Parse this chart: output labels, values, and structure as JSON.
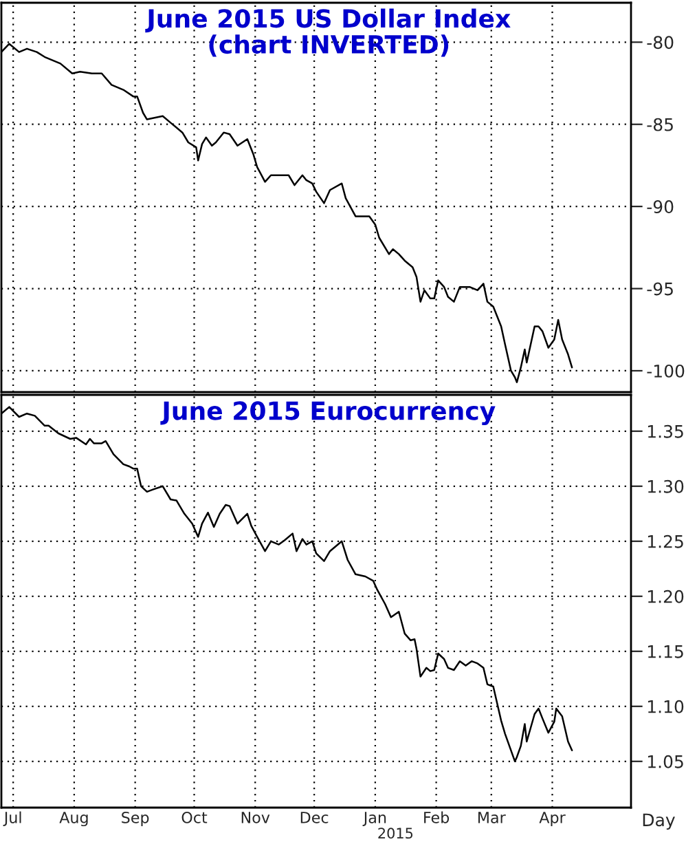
{
  "chart_data": [
    {
      "type": "line",
      "title": "June 2015 US Dollar Index\n(chart INVERTED)",
      "grid": true,
      "tick_labels": "y",
      "xlim": [
        "2014-06-25",
        "2015-05-11"
      ],
      "xticks": [
        {
          "value": "2014-07-01",
          "label": null
        },
        {
          "value": "2014-08-01",
          "label": null
        },
        {
          "value": "2014-09-01",
          "label": null
        },
        {
          "value": "2014-10-01",
          "label": null
        },
        {
          "value": "2014-11-01",
          "label": null
        },
        {
          "value": "2014-12-01",
          "label": null
        },
        {
          "value": "2015-01-01",
          "label": null
        },
        {
          "value": "2015-02-01",
          "label": null
        },
        {
          "value": "2015-03-01",
          "label": null
        },
        {
          "value": "2015-04-01",
          "label": null
        }
      ],
      "ylim": [
        -101.3,
        -77.6
      ],
      "yticks": [
        {
          "value": -100,
          "label": "-100"
        },
        {
          "value": -95,
          "label": "-95"
        },
        {
          "value": -90,
          "label": "-90"
        },
        {
          "value": -85,
          "label": "-85"
        },
        {
          "value": -80,
          "label": "-80"
        }
      ],
      "series": [
        {
          "color": "#000000",
          "x": [
            "2014-06-25",
            "2014-06-29",
            "2014-07-04",
            "2014-07-08",
            "2014-07-13",
            "2014-07-17",
            "2014-07-25",
            "2014-07-31",
            "2014-08-04",
            "2014-08-10",
            "2014-08-15",
            "2014-08-20",
            "2014-08-26",
            "2014-08-31",
            "2014-09-02",
            "2014-09-05",
            "2014-09-07",
            "2014-09-15",
            "2014-09-19",
            "2014-09-25",
            "2014-09-28",
            "2014-10-02",
            "2014-10-03",
            "2014-10-05",
            "2014-10-07",
            "2014-10-10",
            "2014-10-12",
            "2014-10-16",
            "2014-10-19",
            "2014-10-23",
            "2014-10-28",
            "2014-10-31",
            "2014-11-02",
            "2014-11-06",
            "2014-11-09",
            "2014-11-14",
            "2014-11-18",
            "2014-11-21",
            "2014-11-25",
            "2014-11-27",
            "2014-11-30",
            "2014-12-02",
            "2014-12-06",
            "2014-12-09",
            "2014-12-15",
            "2014-12-17",
            "2014-12-22",
            "2014-12-26",
            "2014-12-29",
            "2015-01-01",
            "2015-01-03",
            "2015-01-08",
            "2015-01-10",
            "2015-01-13",
            "2015-01-16",
            "2015-01-20",
            "2015-01-22",
            "2015-01-24",
            "2015-01-26",
            "2015-01-29",
            "2015-01-31",
            "2015-02-02",
            "2015-02-05",
            "2015-02-07",
            "2015-02-10",
            "2015-02-13",
            "2015-02-18",
            "2015-02-22",
            "2015-02-25",
            "2015-02-27",
            "2015-03-02",
            "2015-03-06",
            "2015-03-08",
            "2015-03-11",
            "2015-03-13",
            "2015-03-14",
            "2015-03-16",
            "2015-03-18",
            "2015-03-19",
            "2015-03-23",
            "2015-03-25",
            "2015-03-27",
            "2015-03-30",
            "2015-04-02",
            "2015-04-04",
            "2015-04-06",
            "2015-04-09",
            "2015-04-11"
          ],
          "values": [
            -80.6,
            -80.1,
            -80.6,
            -80.4,
            -80.6,
            -80.9,
            -81.3,
            -81.9,
            -81.8,
            -81.9,
            -81.9,
            -82.6,
            -82.9,
            -83.3,
            -83.3,
            -84.3,
            -84.7,
            -84.5,
            -84.9,
            -85.5,
            -86.1,
            -86.4,
            -87.2,
            -86.2,
            -85.8,
            -86.3,
            -86.1,
            -85.5,
            -85.6,
            -86.3,
            -85.9,
            -86.8,
            -87.6,
            -88.5,
            -88.1,
            -88.1,
            -88.1,
            -88.7,
            -88.1,
            -88.4,
            -88.6,
            -89.1,
            -89.8,
            -89.0,
            -88.6,
            -89.5,
            -90.6,
            -90.6,
            -90.6,
            -91.1,
            -91.9,
            -92.9,
            -92.6,
            -92.9,
            -93.3,
            -93.7,
            -94.3,
            -95.8,
            -95.1,
            -95.6,
            -95.6,
            -94.5,
            -94.9,
            -95.5,
            -95.8,
            -94.9,
            -94.9,
            -95.1,
            -94.7,
            -95.8,
            -96.1,
            -97.3,
            -98.4,
            -100.0,
            -100.4,
            -100.7,
            -99.8,
            -98.7,
            -99.5,
            -97.3,
            -97.3,
            -97.6,
            -98.6,
            -98.1,
            -96.9,
            -98.1,
            -99.0,
            -99.8
          ]
        }
      ]
    },
    {
      "type": "line",
      "title": "June 2015 Eurocurrency",
      "grid": true,
      "xlabel": "Day",
      "annotations": [
        "2015"
      ],
      "xlim": [
        "2014-06-25",
        "2015-05-11"
      ],
      "xticks": [
        {
          "value": "2014-07-01",
          "label": "Jul"
        },
        {
          "value": "2014-08-01",
          "label": "Aug"
        },
        {
          "value": "2014-09-01",
          "label": "Sep"
        },
        {
          "value": "2014-10-01",
          "label": "Oct"
        },
        {
          "value": "2014-11-01",
          "label": "Nov"
        },
        {
          "value": "2014-12-01",
          "label": "Dec"
        },
        {
          "value": "2015-01-01",
          "label": "Jan"
        },
        {
          "value": "2015-02-01",
          "label": "Feb"
        },
        {
          "value": "2015-03-01",
          "label": "Mar"
        },
        {
          "value": "2015-04-01",
          "label": "Apr"
        }
      ],
      "ylim": [
        1.008,
        1.383
      ],
      "yticks": [
        {
          "value": 1.05,
          "label": "1.05"
        },
        {
          "value": 1.1,
          "label": "1.10"
        },
        {
          "value": 1.15,
          "label": "1.15"
        },
        {
          "value": 1.2,
          "label": "1.20"
        },
        {
          "value": 1.25,
          "label": "1.25"
        },
        {
          "value": 1.3,
          "label": "1.30"
        },
        {
          "value": 1.35,
          "label": "1.35"
        }
      ],
      "series": [
        {
          "color": "#000000",
          "x": [
            "2014-06-25",
            "2014-06-29",
            "2014-07-04",
            "2014-07-08",
            "2014-07-12",
            "2014-07-17",
            "2014-07-19",
            "2014-07-24",
            "2014-07-30",
            "2014-08-02",
            "2014-08-07",
            "2014-08-09",
            "2014-08-11",
            "2014-08-15",
            "2014-08-17",
            "2014-08-21",
            "2014-08-26",
            "2014-08-29",
            "2014-08-31",
            "2014-09-02",
            "2014-09-04",
            "2014-09-07",
            "2014-09-10",
            "2014-09-15",
            "2014-09-19",
            "2014-09-22",
            "2014-09-26",
            "2014-09-30",
            "2014-10-03",
            "2014-10-05",
            "2014-10-08",
            "2014-10-11",
            "2014-10-14",
            "2014-10-17",
            "2014-10-19",
            "2014-10-23",
            "2014-10-28",
            "2014-10-30",
            "2014-11-02",
            "2014-11-06",
            "2014-11-09",
            "2014-11-13",
            "2014-11-16",
            "2014-11-20",
            "2014-11-22",
            "2014-11-25",
            "2014-11-27",
            "2014-11-30",
            "2014-12-02",
            "2014-12-06",
            "2014-12-09",
            "2014-12-15",
            "2014-12-18",
            "2014-12-22",
            "2014-12-27",
            "2014-12-31",
            "2015-01-02",
            "2015-01-06",
            "2015-01-09",
            "2015-01-13",
            "2015-01-16",
            "2015-01-19",
            "2015-01-21",
            "2015-01-22",
            "2015-01-24",
            "2015-01-27",
            "2015-01-29",
            "2015-01-31",
            "2015-02-02",
            "2015-02-05",
            "2015-02-07",
            "2015-02-10",
            "2015-02-13",
            "2015-02-16",
            "2015-02-19",
            "2015-02-22",
            "2015-02-25",
            "2015-02-27",
            "2015-03-02",
            "2015-03-06",
            "2015-03-08",
            "2015-03-11",
            "2015-03-13",
            "2015-03-14",
            "2015-03-16",
            "2015-03-18",
            "2015-03-19",
            "2015-03-23",
            "2015-03-25",
            "2015-03-27",
            "2015-03-30",
            "2015-04-02",
            "2015-04-03",
            "2015-04-06",
            "2015-04-09",
            "2015-04-11"
          ],
          "values": [
            1.366,
            1.372,
            1.363,
            1.366,
            1.364,
            1.355,
            1.355,
            1.348,
            1.343,
            1.344,
            1.338,
            1.343,
            1.339,
            1.339,
            1.341,
            1.329,
            1.32,
            1.318,
            1.316,
            1.316,
            1.3,
            1.295,
            1.297,
            1.3,
            1.288,
            1.287,
            1.275,
            1.266,
            1.254,
            1.266,
            1.276,
            1.263,
            1.275,
            1.283,
            1.282,
            1.266,
            1.275,
            1.264,
            1.254,
            1.241,
            1.25,
            1.247,
            1.251,
            1.257,
            1.241,
            1.252,
            1.247,
            1.25,
            1.239,
            1.232,
            1.241,
            1.25,
            1.233,
            1.22,
            1.218,
            1.214,
            1.206,
            1.193,
            1.181,
            1.186,
            1.166,
            1.16,
            1.161,
            1.152,
            1.127,
            1.135,
            1.132,
            1.133,
            1.148,
            1.143,
            1.135,
            1.133,
            1.141,
            1.137,
            1.141,
            1.139,
            1.135,
            1.12,
            1.118,
            1.087,
            1.075,
            1.06,
            1.05,
            1.054,
            1.064,
            1.084,
            1.068,
            1.093,
            1.098,
            1.089,
            1.076,
            1.086,
            1.098,
            1.091,
            1.068,
            1.06
          ]
        }
      ]
    }
  ]
}
